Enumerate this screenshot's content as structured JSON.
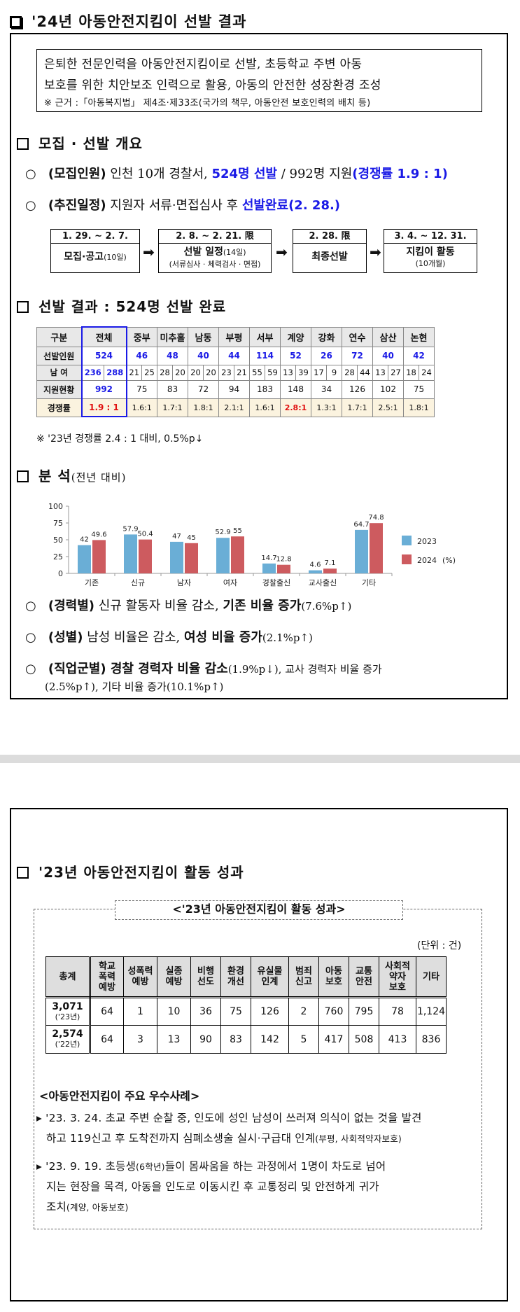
{
  "p1": {
    "header": "'24년 아동안전지킴이 선발 결과",
    "intro": {
      "line1": "은퇴한 전문인력을 아동안전지킴이로 선발, 초등학교 주변 아동",
      "line2": "보호를 위한 치안보조 인력으로 활용, 아동의 안전한 성장환경 조성",
      "note": "※ 근거 :「아동복지법」 제4조·제33조(국가의 책무, 아동안전 보호인력의 배치 등)"
    },
    "sec1_title": "모집 · 선발 개요",
    "b1": {
      "mark": "○",
      "tag": "(모집인원)",
      "t1": " 인천 10개 경찰서, ",
      "hl": "524명 선발",
      "t2": " / 992명 지원",
      "hl2": "(경쟁률 1.9 : 1)"
    },
    "b2": {
      "mark": "○",
      "tag": "(추진일정)",
      "t1": " 지원자 서류·면접심사 후 ",
      "hl": "선발완료",
      "hl2": "(2. 28.)"
    },
    "steps": [
      {
        "date": "1. 29. ~ 2. 7.",
        "label": "모집·공고",
        "label_small": "(10일)",
        "sub": ""
      },
      {
        "date": "2. 8. ~ 2. 21. 限",
        "label": "선발 일정",
        "label_small": "(14일)",
        "sub": "(서류심사 · 체력검사 · 면접)"
      },
      {
        "date": "2. 28. 限",
        "label": "최종선발",
        "label_small": "",
        "sub": ""
      },
      {
        "date": "3. 4. ~ 12. 31.",
        "label": "지킴이 활동",
        "label_small": "",
        "sub": "(10개월)"
      }
    ],
    "arrow": "➡",
    "sec2_title": "선발 결과 : 524명 선발 완료",
    "table": {
      "header": [
        "구분",
        "전체",
        "중부",
        "미추홀",
        "남동",
        "부평",
        "서부",
        "계양",
        "강화",
        "연수",
        "삼산",
        "논현"
      ],
      "selected_label": "선발인원",
      "selected": [
        "524",
        "46",
        "48",
        "40",
        "44",
        "114",
        "52",
        "26",
        "72",
        "40",
        "42"
      ],
      "gender_label": "남    여",
      "gender": [
        "236",
        "288",
        "21",
        "25",
        "28",
        "20",
        "20",
        "20",
        "23",
        "21",
        "55",
        "59",
        "13",
        "39",
        "17",
        "9",
        "28",
        "44",
        "13",
        "27",
        "18",
        "24"
      ],
      "applied_label": "지원현황",
      "applied": [
        "992",
        "75",
        "83",
        "72",
        "94",
        "183",
        "148",
        "34",
        "126",
        "102",
        "75"
      ],
      "ratio_label": "경쟁률",
      "ratio": [
        "1.9 : 1",
        "1.6:1",
        "1.7:1",
        "1.8:1",
        "2.1:1",
        "1.6:1",
        "2.8:1",
        "1.3:1",
        "1.7:1",
        "2.5:1",
        "1.8:1"
      ]
    },
    "table_note": "※ '23년 경쟁률 2.4 : 1 대비, 0.5%p↓",
    "sec3_title": "분 석",
    "sec3_sub": "(전년 대비)",
    "b3": {
      "mark": "○",
      "tag": "(경력별)",
      "t1": " 신규 활동자 비율 감소, ",
      "bold": "기존 비율 증가",
      "t2": "(7.6%p↑)"
    },
    "b4": {
      "mark": "○",
      "tag": "(성별)",
      "t1": " 남성 비율은 감소, ",
      "bold": "여성 비율 증가",
      "t2": "(2.1%p↑)"
    },
    "b5": {
      "mark": "○",
      "tag": "(직업군별)",
      "bold": " 경찰 경력자 비율 감소",
      "t1": "(1.9%p↓), 교사 경력자 비율 증가",
      "t2": "(2.5%p↑), 기타 비율 증가(10.1%p↑)"
    }
  },
  "chart_data": {
    "type": "bar",
    "categories": [
      "기존",
      "신규",
      "남자",
      "여자",
      "경찰출신",
      "교사출신",
      "기타"
    ],
    "series": [
      {
        "name": "2023",
        "values": [
          42,
          57.9,
          47,
          52.9,
          14.7,
          4.6,
          64.7
        ],
        "color": "#6aaed6"
      },
      {
        "name": "2024",
        "values": [
          49.6,
          50.4,
          45,
          55,
          12.8,
          7.1,
          74.8
        ],
        "color": "#cd5b5f"
      }
    ],
    "ylim": [
      0,
      100
    ],
    "yticks": [
      0,
      25,
      50,
      75,
      100
    ],
    "legend_unit": "(%)",
    "legend_position": "right"
  },
  "p2": {
    "header": "'23년 아동안전지킴이 활동 성과",
    "caption": "<'23년 아동안전지킴이 활동 성과>",
    "unit": "(단위 : 건)",
    "table": {
      "header": [
        [
          "총계"
        ],
        [
          "학교",
          "폭력",
          "예방"
        ],
        [
          "성폭력",
          "예방"
        ],
        [
          "실종",
          "예방"
        ],
        [
          "비행",
          "선도"
        ],
        [
          "환경",
          "개선"
        ],
        [
          "유실물",
          "인계"
        ],
        [
          "범죄",
          "신고"
        ],
        [
          "아동",
          "보호"
        ],
        [
          "교통",
          "안전"
        ],
        [
          "사회적",
          "약자",
          "보호"
        ],
        [
          "기타"
        ]
      ],
      "rows": [
        {
          "total": "3,071",
          "year": "('23년)",
          "values": [
            "64",
            "1",
            "10",
            "36",
            "75",
            "126",
            "2",
            "760",
            "795",
            "78",
            "1,124"
          ]
        },
        {
          "total": "2,574",
          "year": "('22년)",
          "values": [
            "64",
            "3",
            "13",
            "90",
            "83",
            "142",
            "5",
            "417",
            "508",
            "413",
            "836"
          ]
        }
      ]
    },
    "cases_title": "<아동안전지킴이 주요 우수사례>",
    "case1": {
      "l1": "'23. 3. 24. 초교 주변 순찰 중, 인도에 성인 남성이 쓰러져 의식이 없는 것을  발견",
      "l2": "하고 119신고 후 도착전까지 심폐소생술 실시·구급대 인계",
      "tag": "(부평, 사회적약자보호)"
    },
    "case2": {
      "l1a": "'23. 9. 19. 초등생",
      "l1s": "(6학년)",
      "l1b": "들이 몸싸움을 하는 과정에서 1명이 차도로 넘어",
      "l2": "지는 현장을 목격, 아동을 인도로 이동시킨 후 교통정리 및 안전하게 귀가",
      "l3": "조치",
      "tag": "(계양, 아동보호)"
    },
    "case_marker": "▸"
  }
}
